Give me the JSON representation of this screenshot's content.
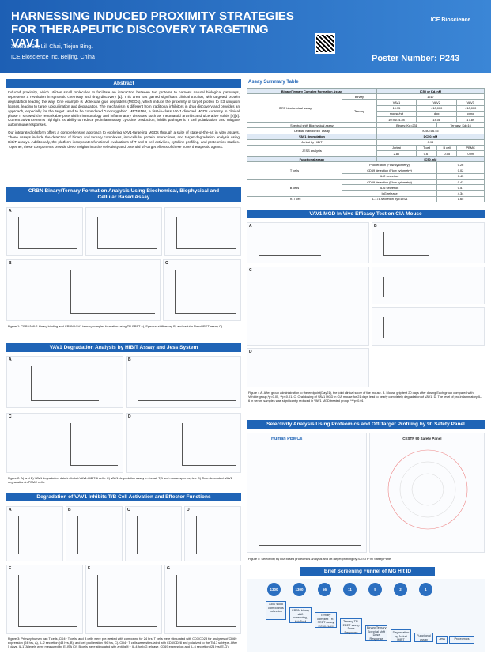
{
  "header": {
    "title": "HARNESSING INDUCED PROXIMITY STRATEGIES FOR THERAPEUTIC DISCOVERY TARGETING VAV1",
    "authors": "Xiaolan Su, Lili Chai, Tiejun Bing.",
    "affiliation": "ICE Bioscience Inc, Beijing, China",
    "poster_number": "Poster Number: P243",
    "logo": "ICE Bioscience"
  },
  "abstract": {
    "heading": "Abstract",
    "paragraphs": [
      "Induced proximity, which utilizes small molecules to facilitate an interaction between two proteins to harness natural biological pathways, represents a revolution in synthetic chemistry and drug discovery [1]. This area has gained significant clinical traction, with targeted protein degradation leading the way. One example is Molecular glue degraders (MGDs), which induce the proximity of target protein to E3 ubiquitin ligases, leading to target ubiquitination and degradation. The mechanism is different from traditional inhibitors in drug discovery and provides an approach, especially for the target used to be considered \"undruggable\". MRT-6160, a first-in-class VAV1-directed MGDs currently in clinical phase I, showed the remarkable potential in immunology and inflammatory diseases such as rheumatoid arthritis and ulcerative colitis [2][3]. Current advancements highlight its ability to reduce proinflammatory cytokine production, inhibit pathogenic T cell polarization, and mitigate autoimmune responses.",
      "Our integrated platform offers a comprehensive approach to exploring VAV1-targeting MGDs through a suite of state-of-the-art in vitro assays. These assays include the detection of binary and ternary complexes, intracellular protein interactions, and target degradation analysis using HiBiT assays. Additionally, the platform incorporates functional evaluations of T and B cell activities, cytokine profiling, and proteomics studies. Together, these components provide deep insights into the selectivity and potential off-target effects of these novel therapeutic agents."
    ]
  },
  "crbn": {
    "heading": "CRBN Binary/Ternary Formation Analysis Using Biochemical, Biophysical and Cellular Based Assay",
    "panels": [
      "A",
      "B",
      "C"
    ],
    "caption": "Figure 1: CRBN/VAV1 binary binding and CRBN/VAV1 ternary complex formation using TR-FRET A), Spectral shift assay B) and cellular NanoBRET assay C)."
  },
  "degradation": {
    "heading": "VAV1 Degradation Analysis by HiBiT Assay and Jess System",
    "panels": [
      "A",
      "B",
      "C",
      "D"
    ],
    "caption": "Figure 2: A) and B) VAV1 degradation data in Jurkat-VAV1-HiBiT-6 cells. C) VAV1 degradation assay in Jurkat, T,B and mouse splenocytes. D) Time-dependent VAV1 degradation in PBMC cells."
  },
  "activation": {
    "heading": "Degradation of VAV1 Inhibits T/B Cell Activation and Effector Functions",
    "panels": [
      "A",
      "B",
      "C",
      "D",
      "E",
      "F",
      "G"
    ],
    "caption": "Figure 3: Primary human pan T cells, CD4+ T cells, and B cells were pre-treated with compound for 24 hrs. T cells were stimulated with CD3/CD28 for analyses of CD69 expression (24 hrs, A), IL-2 secretion (48 hrs, B), and cell proliferation (96 hrs, C). CD4+ T cells were stimulated with CD3/CD28 and polarized to the Th17 subtype. After 5 days, IL-17A levels were measured by ELISA (D). B cells were stimulated with anti-IgM + IL-4 for IgG release, CD69 expression and IL-6 secretion (24 hrs)(E-G)."
  },
  "table": {
    "title": "Assay Summary Table",
    "head": [
      "Binary/Ternary Complex Formation Assay",
      "IC50 or Kd, nM"
    ],
    "htrf": "HTRF biochemical assay",
    "binary": "Binary",
    "binary_value": "1217",
    "ternary": "Ternary",
    "ternary_rows": [
      [
        "VAV1",
        "VAV2",
        "VAV3"
      ],
      [
        "10.35",
        ">10,000",
        ">10,000"
      ],
      [
        "mouse/rat",
        "dog",
        "cyno"
      ],
      [
        "10.94/14.28",
        "14.08",
        "17.89"
      ]
    ],
    "spectral": [
      "Spectral shift Biophysical assay",
      "Binary: Kd=231",
      "Ternary: Kd=16"
    ],
    "nanobret": [
      "Cellular NanoBRET assay",
      "IC50=16.45"
    ],
    "deg_head": [
      "VAV1 degradation",
      "DC50, nM"
    ],
    "hibit": [
      "Jurkat by HiBiT",
      "0.98"
    ],
    "jess": "JESS analysis",
    "jess_rows": [
      [
        "Jurkat",
        "T cell",
        "B cell",
        "PBMC"
      ],
      [
        "2.80",
        "0.67",
        "0.55",
        "0.99"
      ]
    ],
    "func_head": [
      "Functional assay",
      "IC50, nM"
    ],
    "tcells": "T cells",
    "tcell_rows": [
      [
        "Proliferation (Flow cytometry)",
        "0.26"
      ],
      [
        "CD69 detection (Flow cytometry)",
        "0.02"
      ],
      [
        "IL-2 secretion",
        "0.45"
      ]
    ],
    "bcells": "B cells",
    "bcell_rows": [
      [
        "CD69 detection (Flow cytometry)",
        "0.43"
      ],
      [
        "IL-6 secretion",
        "0.57"
      ],
      [
        "IgG release",
        "4.34"
      ]
    ],
    "th17": [
      "Th17 cell",
      "IL-17A secretion by ELISA",
      "1.65"
    ]
  },
  "invivo": {
    "heading": "VAV1 MGD In Vivo Efficacy Test on CIA Mouse",
    "panels": [
      "A",
      "B",
      "C",
      "D"
    ],
    "caption": "Figure 4 A. After group administration to the endpoint(Day21), the joint clinical score of the mouse. B. Mouse grip test 20 days after dosing.Each group compared with Vehicle group,*p<0.05, **p<0.01. C. Oral dosing of VAV1 MGD in CIA mouse for 21 days lead to nearly completely degradation of VAV1. D. The level of pro-inflammatory IL-6 in serum samples was significantly reduced in VAV1 MGD treated group. ***p<0.01"
  },
  "selectivity": {
    "heading": "Selectivity Analysis Using Proteomics and Off-Target Profiling by 90 Safety Panel",
    "left": "Human PBMCs",
    "right": "ICESTP 90 Safety Panel",
    "caption": "Figure 5: Selectivity by DIA based proteomics analysis and off-target profiling by ICESTP 90 Safety Panel"
  },
  "funnel": {
    "heading": "Brief Screening Funnel of MG Hit ID",
    "counts": [
      "1300",
      "1300",
      "56",
      "11",
      "5",
      "2",
      "1"
    ],
    "steps": [
      "1300 stock compounds collection",
      "CRBN binary shift screening, Kd<5uM",
      "Ternary complex TR-FRET assay EC50<1uM",
      "Ternary TR-FRET assay Dose Response",
      "Binary/Ternary Spectral shift Dose Response",
      "Degradation by Jurkat HiBiT",
      "Functional assay",
      "Jess",
      "Proteomics"
    ]
  }
}
